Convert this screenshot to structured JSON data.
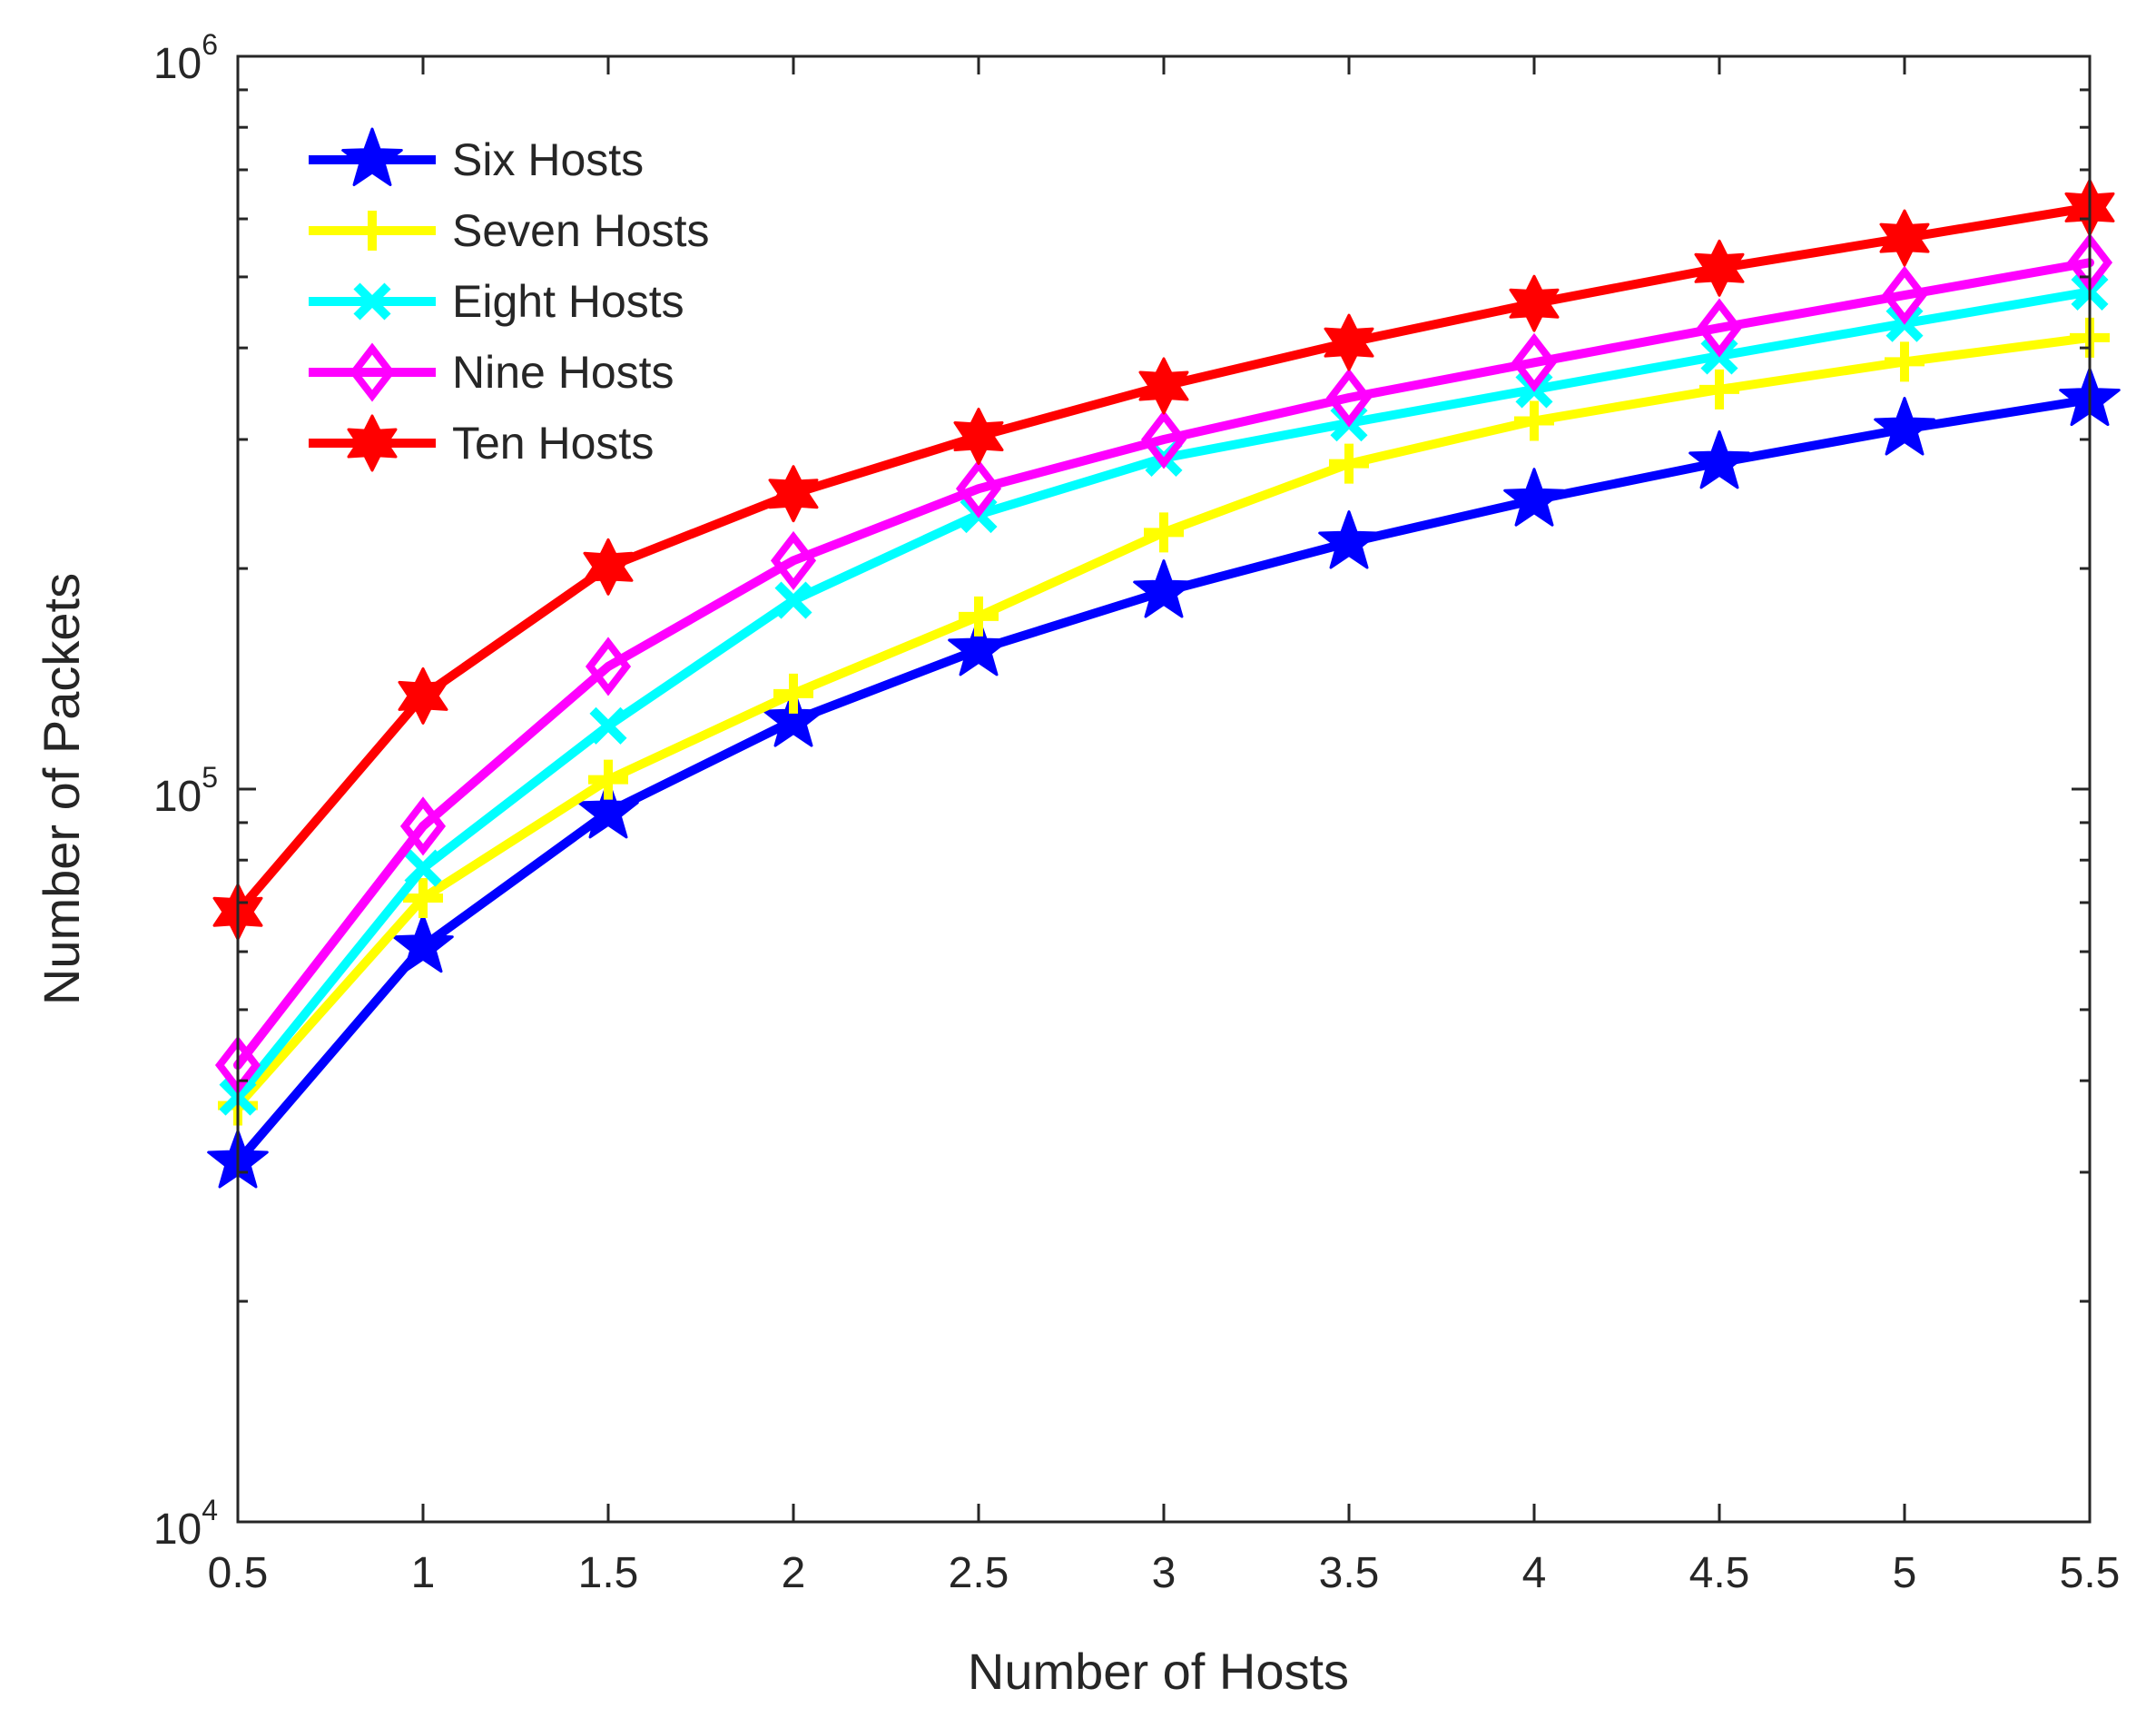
{
  "chart_data": {
    "type": "line",
    "title": "",
    "xlabel": "Number of Hosts",
    "ylabel": "Number of Packets",
    "yscale": "log",
    "xlim": [
      0.5,
      5.5
    ],
    "ylim": [
      10000,
      1000000
    ],
    "grid": false,
    "legend_position": "top-left",
    "x": [
      0.5,
      1,
      1.5,
      2,
      2.5,
      3,
      3.5,
      4,
      4.5,
      5,
      5.5
    ],
    "x_tick_labels": [
      "0.5",
      "1",
      "1.5",
      "2",
      "2.5",
      "3",
      "3.5",
      "4",
      "4.5",
      "5",
      "5.5"
    ],
    "y_tick_labels": [
      {
        "value": 10000,
        "base": "10",
        "exponent": "4"
      },
      {
        "value": 100000,
        "base": "10",
        "exponent": "5"
      },
      {
        "value": 1000000,
        "base": "10",
        "exponent": "6"
      }
    ],
    "series": [
      {
        "name": "Six Hosts",
        "color": "#0000ff",
        "marker": "pentagram",
        "values": [
          31000,
          61000,
          93000,
          124000,
          155000,
          186000,
          217000,
          248000,
          279000,
          310000,
          340000
        ]
      },
      {
        "name": "Seven Hosts",
        "color": "#ffff00",
        "marker": "plus",
        "values": [
          37000,
          71000,
          103000,
          135000,
          172000,
          224000,
          278000,
          318000,
          351000,
          383000,
          413000
        ]
      },
      {
        "name": "Eight Hosts",
        "color": "#00ffff",
        "marker": "x",
        "values": [
          38000,
          78000,
          122000,
          181000,
          237000,
          283000,
          316000,
          351000,
          390000,
          432000,
          477000
        ]
      },
      {
        "name": "Nine Hosts",
        "color": "#ff00ff",
        "marker": "diamond",
        "values": [
          42000,
          89000,
          147000,
          205000,
          257000,
          300000,
          342000,
          382000,
          426000,
          472000,
          523000
        ]
      },
      {
        "name": "Ten Hosts",
        "color": "#ff0000",
        "marker": "hexagram",
        "values": [
          68000,
          134000,
          201000,
          253000,
          303000,
          355000,
          407000,
          460000,
          514000,
          565000,
          622000
        ]
      }
    ]
  }
}
